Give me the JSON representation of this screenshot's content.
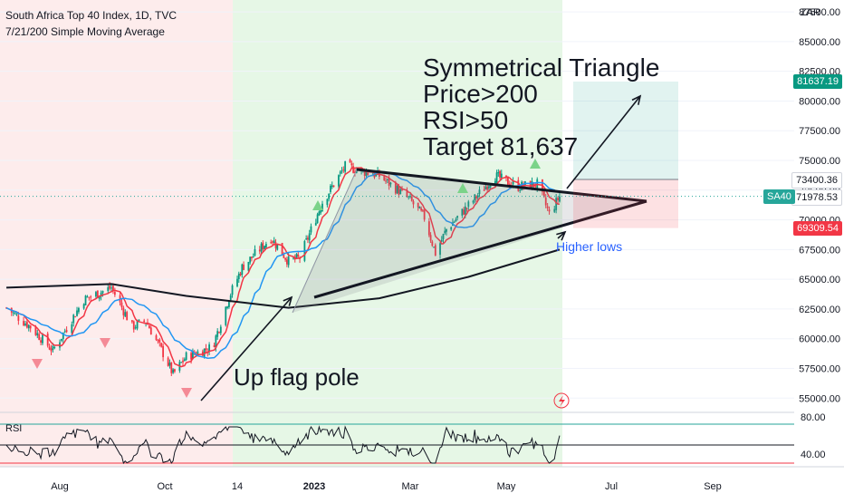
{
  "header": {
    "title": "South Africa Top 40 Index, 1D, TVC",
    "indicator": "7/21/200 Simple Moving Average"
  },
  "currency": "ZAR",
  "symbol": "SA40",
  "price_labels": {
    "target": "81637.19",
    "upper": "73400.36",
    "last": "71978.53",
    "stop": "69309.54"
  },
  "annotations": {
    "triangle_title": "Symmetrical Triangle",
    "line2": "Price>200",
    "line3": "RSI>50",
    "line4": "Target 81,637",
    "flag_pole": "Up flag pole",
    "higher_lows": "Higher lows"
  },
  "rsi": {
    "label": "RSI",
    "upper_tick": "80.00",
    "lower_tick": "40.00"
  },
  "colors": {
    "up": "#089981",
    "down": "#f23645",
    "bg_green": "#e6f7e6",
    "bg_red": "#fdecec",
    "ma7": "#f23645",
    "ma21": "#2196f3",
    "ma200": "#131722",
    "accent": "#2962ff"
  },
  "chart_data": {
    "type": "candlestick",
    "title": "South Africa Top 40 Index, 1D, TVC",
    "x_ticks": [
      "Aug",
      "Oct",
      "14",
      "2023",
      "Mar",
      "May",
      "Jul",
      "Sep"
    ],
    "y_ticks": [
      87500,
      85000,
      82500,
      80000,
      77500,
      75000,
      72500,
      70000,
      67500,
      65000,
      62500,
      60000,
      57500,
      55000
    ],
    "ylim": [
      53800,
      88500
    ],
    "close_path": [
      {
        "date": "2022-07-01",
        "close": 62600
      },
      {
        "date": "2022-07-15",
        "close": 61000
      },
      {
        "date": "2022-07-28",
        "close": 59000
      },
      {
        "date": "2022-08-15",
        "close": 63300
      },
      {
        "date": "2022-08-31",
        "close": 64300
      },
      {
        "date": "2022-09-12",
        "close": 61000
      },
      {
        "date": "2022-09-20",
        "close": 61500
      },
      {
        "date": "2022-10-01",
        "close": 58500
      },
      {
        "date": "2022-10-06",
        "close": 57000
      },
      {
        "date": "2022-10-14",
        "close": 58500
      },
      {
        "date": "2022-10-30",
        "close": 59300
      },
      {
        "date": "2022-11-09",
        "close": 63500
      },
      {
        "date": "2022-11-17",
        "close": 66000
      },
      {
        "date": "2022-12-05",
        "close": 68500
      },
      {
        "date": "2022-12-16",
        "close": 66500
      },
      {
        "date": "2022-12-23",
        "close": 66800
      },
      {
        "date": "2023-01-06",
        "close": 71500
      },
      {
        "date": "2023-01-20",
        "close": 74500
      },
      {
        "date": "2023-02-10",
        "close": 73700
      },
      {
        "date": "2023-02-28",
        "close": 71800
      },
      {
        "date": "2023-03-10",
        "close": 70200
      },
      {
        "date": "2023-03-17",
        "close": 67200
      },
      {
        "date": "2023-03-24",
        "close": 69200
      },
      {
        "date": "2023-04-07",
        "close": 71200
      },
      {
        "date": "2023-04-24",
        "close": 73700
      },
      {
        "date": "2023-05-08",
        "close": 72800
      },
      {
        "date": "2023-05-19",
        "close": 73000
      },
      {
        "date": "2023-05-26",
        "close": 70500
      },
      {
        "date": "2023-06-01",
        "close": 71978
      }
    ],
    "ma200_path": [
      {
        "date": "2022-07-01",
        "value": 64300
      },
      {
        "date": "2022-08-31",
        "value": 64600
      },
      {
        "date": "2022-10-14",
        "value": 63600
      },
      {
        "date": "2022-12-16",
        "value": 62600
      },
      {
        "date": "2023-02-10",
        "value": 63400
      },
      {
        "date": "2023-04-07",
        "value": 65200
      },
      {
        "date": "2023-06-01",
        "value": 67500
      }
    ],
    "levels": {
      "target": 81637.19,
      "upper": 73400.36,
      "last": 71978.53,
      "stop": 69309.54
    },
    "rsi": {
      "upper": 80,
      "lower": 40
    }
  }
}
